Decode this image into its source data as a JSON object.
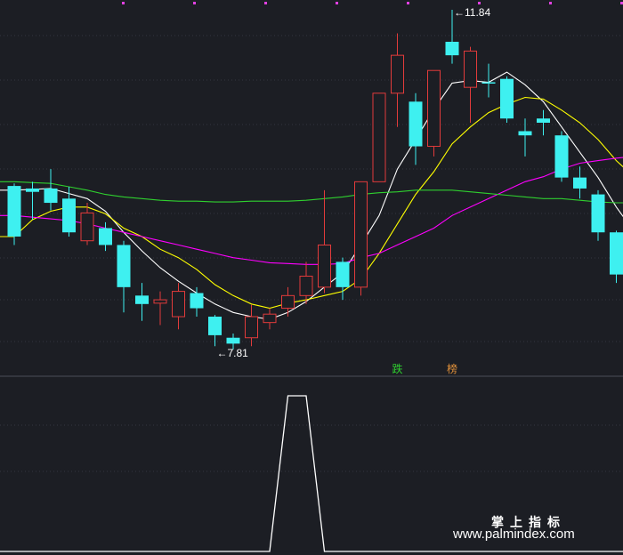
{
  "chart_data": [
    {
      "type": "candlestick",
      "up_color": "#e23b3b",
      "down_color": "#3ef0f0",
      "candles": [
        {
          "o": 9.75,
          "h": 9.78,
          "l": 9.05,
          "c": 9.15
        },
        {
          "o": 9.72,
          "h": 9.8,
          "l": 9.35,
          "c": 9.68
        },
        {
          "o": 9.72,
          "h": 9.95,
          "l": 9.46,
          "c": 9.55
        },
        {
          "o": 9.6,
          "h": 9.74,
          "l": 9.15,
          "c": 9.2
        },
        {
          "o": 9.1,
          "h": 9.55,
          "l": 9.05,
          "c": 9.43
        },
        {
          "o": 9.25,
          "h": 9.32,
          "l": 8.98,
          "c": 9.05
        },
        {
          "o": 9.05,
          "h": 9.1,
          "l": 8.25,
          "c": 8.55
        },
        {
          "o": 8.45,
          "h": 8.6,
          "l": 8.15,
          "c": 8.35
        },
        {
          "o": 8.36,
          "h": 8.5,
          "l": 8.1,
          "c": 8.4
        },
        {
          "o": 8.2,
          "h": 8.6,
          "l": 8.05,
          "c": 8.5
        },
        {
          "o": 8.48,
          "h": 8.55,
          "l": 8.2,
          "c": 8.3
        },
        {
          "o": 8.2,
          "h": 8.22,
          "l": 7.85,
          "c": 7.98
        },
        {
          "o": 7.95,
          "h": 8.0,
          "l": 7.81,
          "c": 7.88
        },
        {
          "o": 7.95,
          "h": 8.34,
          "l": 7.85,
          "c": 8.2
        },
        {
          "o": 8.13,
          "h": 8.3,
          "l": 8.05,
          "c": 8.23
        },
        {
          "o": 8.3,
          "h": 8.55,
          "l": 8.2,
          "c": 8.45
        },
        {
          "o": 8.45,
          "h": 8.85,
          "l": 8.35,
          "c": 8.68
        },
        {
          "o": 8.55,
          "h": 9.7,
          "l": 8.48,
          "c": 9.05
        },
        {
          "o": 8.85,
          "h": 8.9,
          "l": 8.4,
          "c": 8.55
        },
        {
          "o": 8.55,
          "h": 9.8,
          "l": 8.45,
          "c": 9.8
        },
        {
          "o": 9.8,
          "h": 10.85,
          "l": 9.8,
          "c": 10.85
        },
        {
          "o": 10.85,
          "h": 11.56,
          "l": 10.45,
          "c": 11.3
        },
        {
          "o": 10.75,
          "h": 10.85,
          "l": 10.0,
          "c": 10.22
        },
        {
          "o": 10.22,
          "h": 11.12,
          "l": 10.1,
          "c": 11.12
        },
        {
          "o": 11.46,
          "h": 11.84,
          "l": 11.2,
          "c": 11.3
        },
        {
          "o": 10.92,
          "h": 11.4,
          "l": 10.5,
          "c": 11.35
        },
        {
          "o": 10.98,
          "h": 11.2,
          "l": 10.8,
          "c": 10.97
        },
        {
          "o": 11.02,
          "h": 11.05,
          "l": 10.5,
          "c": 10.55
        },
        {
          "o": 10.4,
          "h": 10.55,
          "l": 10.1,
          "c": 10.35
        },
        {
          "o": 10.55,
          "h": 10.65,
          "l": 10.35,
          "c": 10.5
        },
        {
          "o": 10.35,
          "h": 10.4,
          "l": 9.8,
          "c": 9.85
        },
        {
          "o": 9.85,
          "h": 9.98,
          "l": 9.6,
          "c": 9.72
        },
        {
          "o": 9.65,
          "h": 9.7,
          "l": 9.1,
          "c": 9.2
        },
        {
          "o": 9.2,
          "h": 9.22,
          "l": 8.6,
          "c": 8.7
        },
        {
          "o": 8.83,
          "h": 8.85,
          "l": 8.45,
          "c": 8.85
        }
      ],
      "ma_lines": [
        {
          "color": "#ffffff",
          "values": [
            9.7,
            9.71,
            9.72,
            9.66,
            9.6,
            9.45,
            9.2,
            8.98,
            8.78,
            8.62,
            8.48,
            8.35,
            8.25,
            8.2,
            8.17,
            8.25,
            8.38,
            8.55,
            8.72,
            9.05,
            9.4,
            9.95,
            10.3,
            10.66,
            10.97,
            11.0,
            10.98,
            11.1,
            10.95,
            10.75,
            10.45,
            10.15,
            9.85,
            9.5,
            9.2
          ]
        },
        {
          "color": "#ffff00",
          "values": [
            9.15,
            9.35,
            9.45,
            9.5,
            9.5,
            9.42,
            9.25,
            9.15,
            9.0,
            8.9,
            8.76,
            8.58,
            8.45,
            8.35,
            8.3,
            8.36,
            8.4,
            8.45,
            8.5,
            8.65,
            8.95,
            9.3,
            9.65,
            9.92,
            10.25,
            10.45,
            10.62,
            10.72,
            10.8,
            10.78,
            10.65,
            10.5,
            10.3,
            10.05,
            9.85
          ]
        },
        {
          "color": "#ff00ff",
          "values": [
            9.4,
            9.38,
            9.36,
            9.34,
            9.3,
            9.25,
            9.2,
            9.15,
            9.1,
            9.05,
            9.0,
            8.95,
            8.9,
            8.87,
            8.84,
            8.83,
            8.82,
            8.82,
            8.83,
            8.9,
            8.95,
            9.05,
            9.15,
            9.25,
            9.4,
            9.5,
            9.6,
            9.7,
            9.8,
            9.86,
            9.95,
            10.02,
            10.05,
            10.08,
            10.1
          ]
        },
        {
          "color": "#2fd02f",
          "values": [
            9.8,
            9.79,
            9.78,
            9.74,
            9.7,
            9.65,
            9.62,
            9.6,
            9.58,
            9.57,
            9.57,
            9.56,
            9.56,
            9.57,
            9.57,
            9.57,
            9.58,
            9.6,
            9.62,
            9.65,
            9.67,
            9.68,
            9.7,
            9.7,
            9.7,
            9.68,
            9.66,
            9.64,
            9.62,
            9.6,
            9.6,
            9.58,
            9.56,
            9.55,
            9.55
          ]
        }
      ],
      "annotations": [
        {
          "label": "11.84",
          "candle_index": 24,
          "arrow": "←"
        },
        {
          "label": "7.81",
          "candle_index": 11,
          "arrow": "←"
        }
      ],
      "signals": [
        {
          "label": "跌",
          "candle_index": 21,
          "color": "#2fd02f"
        },
        {
          "label": "榜",
          "candle_index": 24,
          "color": "#e0903a"
        }
      ]
    },
    {
      "type": "line",
      "color": "#ffffff",
      "x": [
        0,
        13,
        14,
        15,
        16,
        17,
        34
      ],
      "values": [
        0,
        0,
        0,
        1,
        1,
        0,
        0
      ],
      "ylim": [
        0,
        1
      ]
    }
  ],
  "watermark": {
    "title": "掌上指标",
    "url": "www.palmindex.com"
  }
}
